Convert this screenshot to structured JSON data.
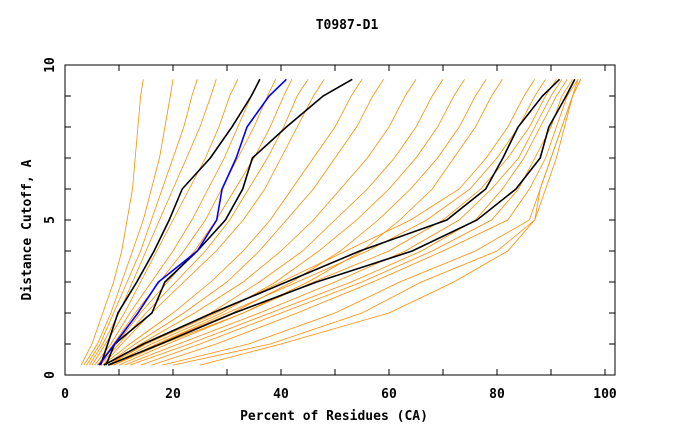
{
  "chart_data": {
    "type": "line",
    "title": "T0987-D1",
    "xlabel": "Percent of Residues (CA)",
    "ylabel": "Distance Cutoff, A",
    "xlim": [
      0,
      101.85
    ],
    "ylim": [
      0,
      10
    ],
    "x_ticks": [
      0,
      20,
      40,
      60,
      80,
      100
    ],
    "y_ticks": [
      0,
      5,
      10
    ],
    "grid": false,
    "legend": "none",
    "colors": {
      "others": "#ff8c00",
      "highlight_black": "#000000",
      "highlight_blue": "#0000ff"
    },
    "y_levels": [
      0.32,
      1,
      2,
      3,
      4,
      5,
      6,
      7,
      8,
      9,
      9.54
    ],
    "series": [
      {
        "color": "#ff8c00",
        "x": [
          3,
          5,
          7,
          9,
          10.5,
          11.5,
          12.5,
          13,
          13.5,
          14,
          14.5
        ]
      },
      {
        "color": "#ff8c00",
        "x": [
          3.5,
          6,
          8.5,
          10.5,
          12.5,
          14.5,
          16,
          17.5,
          18.5,
          19.5,
          20
        ]
      },
      {
        "color": "#ff8c00",
        "x": [
          4,
          6.5,
          9,
          11.5,
          14,
          16,
          18,
          20,
          22,
          23.5,
          24.5
        ]
      },
      {
        "color": "#ff8c00",
        "x": [
          4.5,
          7,
          10,
          12.5,
          15,
          17.5,
          20,
          22.5,
          25,
          27,
          28
        ]
      },
      {
        "color": "#ff8c00",
        "x": [
          5,
          7.5,
          11,
          14,
          17,
          20,
          23,
          26,
          28.5,
          30.5,
          32
        ]
      },
      {
        "color": "#ff8c00",
        "x": [
          5.5,
          8.5,
          12,
          16,
          20,
          23.5,
          26.5,
          29.5,
          32,
          34.5,
          36
        ]
      },
      {
        "color": "#ff8c00",
        "x": [
          6,
          9,
          13,
          17.5,
          22,
          26,
          29,
          32,
          35,
          37.5,
          39
        ]
      },
      {
        "color": "#ff8c00",
        "x": [
          6,
          9.5,
          14,
          19,
          24,
          28,
          31.5,
          35,
          38,
          40.5,
          42
        ]
      },
      {
        "color": "#ff8c00",
        "x": [
          6.5,
          10,
          15,
          20.5,
          26,
          30.5,
          34,
          37.5,
          40.5,
          43,
          45
        ]
      },
      {
        "color": "#ff8c00",
        "x": [
          7,
          10.5,
          16,
          22,
          28,
          33,
          37,
          40,
          43,
          46,
          48
        ]
      },
      {
        "color": "#ff8c00",
        "x": [
          7,
          12,
          20,
          27,
          33,
          38,
          42,
          46,
          50,
          53,
          55
        ]
      },
      {
        "color": "#ff8c00",
        "x": [
          7.5,
          13,
          22,
          30,
          36,
          41,
          46,
          50,
          54,
          57,
          59
        ]
      },
      {
        "color": "#ff8c00",
        "x": [
          8,
          14,
          24,
          33,
          40,
          46,
          51,
          56,
          60,
          63,
          65
        ]
      },
      {
        "color": "#ff8c00",
        "x": [
          8,
          15,
          27,
          36,
          44,
          50,
          56,
          61,
          65,
          68,
          70
        ]
      },
      {
        "color": "#ff8c00",
        "x": [
          8.5,
          16,
          29,
          39,
          47,
          54,
          60,
          65,
          69,
          72,
          74
        ]
      },
      {
        "color": "#ff8c00",
        "x": [
          9,
          17,
          31,
          42,
          51,
          58,
          64,
          69,
          73,
          76,
          78
        ]
      },
      {
        "color": "#ff8c00",
        "x": [
          9,
          18,
          33,
          45,
          55,
          62,
          68,
          72,
          76,
          79,
          81
        ]
      },
      {
        "color": "#ff8c00",
        "x": [
          8,
          15,
          28,
          40,
          52,
          64,
          73,
          78,
          82,
          85,
          87
        ]
      },
      {
        "color": "#ff8c00",
        "x": [
          9,
          17,
          30,
          43,
          56,
          67,
          75,
          80,
          84,
          87,
          89
        ]
      },
      {
        "color": "#ff8c00",
        "x": [
          10,
          19,
          33,
          46,
          60,
          70,
          77,
          82,
          86,
          89,
          91
        ]
      },
      {
        "color": "#ff8c00",
        "x": [
          11,
          21,
          36,
          50,
          63,
          73,
          79,
          84,
          87,
          90,
          92
        ]
      },
      {
        "color": "#ff8c00",
        "x": [
          12,
          23,
          38,
          53,
          66,
          76,
          81,
          85,
          88,
          91,
          93
        ]
      },
      {
        "color": "#ff8c00",
        "x": [
          14,
          25,
          40,
          55,
          68,
          79,
          84,
          87,
          90,
          92,
          94
        ]
      },
      {
        "color": "#ff8c00",
        "x": [
          16,
          28,
          43,
          57,
          70,
          82,
          86,
          89,
          91,
          93,
          95
        ]
      },
      {
        "color": "#ff8c00",
        "x": [
          18,
          34,
          50,
          62,
          76,
          86,
          88,
          90,
          92,
          94,
          95.5
        ]
      },
      {
        "color": "#ff8c00",
        "x": [
          20,
          38,
          55,
          66,
          80,
          87,
          89,
          91,
          92.5,
          94,
          95.5
        ]
      },
      {
        "color": "#ff8c00",
        "x": [
          25,
          40,
          60,
          72,
          82,
          87,
          88,
          90,
          92,
          94,
          95
        ]
      },
      {
        "color": "#000000",
        "x": [
          6.6,
          7.9,
          9.8,
          13.3,
          16.5,
          19.3,
          21.7,
          26.9,
          30.9,
          34.5,
          36.1
        ]
      },
      {
        "color": "#000000",
        "x": [
          7.6,
          9.2,
          16.1,
          18.5,
          24.5,
          29.7,
          32.9,
          34.7,
          41.0,
          47.8,
          53.2
        ]
      },
      {
        "color": "#000000",
        "x": [
          7.2,
          14.5,
          27.3,
          41.0,
          54.6,
          70.7,
          77.9,
          81.1,
          83.9,
          88.4,
          91.6
        ]
      },
      {
        "color": "#000000",
        "x": [
          8.0,
          17.7,
          31.3,
          46.6,
          64.3,
          76.3,
          83.5,
          88.0,
          89.6,
          92.8,
          94.4
        ]
      },
      {
        "color": "#0000ff",
        "x": [
          6.3,
          9.2,
          13.5,
          17.3,
          24.5,
          28.1,
          29.1,
          31.7,
          33.7,
          37.8,
          41.0
        ]
      }
    ]
  }
}
